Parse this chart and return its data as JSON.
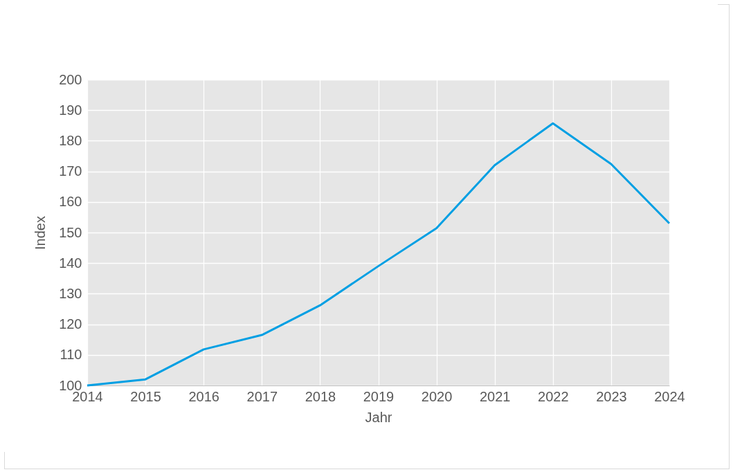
{
  "chart_data": {
    "type": "line",
    "xlabel": "Jahr",
    "ylabel": "Index",
    "x": [
      2014,
      2015,
      2016,
      2017,
      2018,
      2019,
      2020,
      2021,
      2022,
      2023,
      2024
    ],
    "series": [
      {
        "color": "#009fe3",
        "values": [
          100,
          102,
          111.8,
          116.5,
          126.2,
          139,
          151.4,
          172,
          185.7,
          172.4,
          153
        ]
      }
    ],
    "xlim": [
      2014,
      2024
    ],
    "xticks": [
      2014,
      2015,
      2016,
      2017,
      2018,
      2019,
      2020,
      2021,
      2022,
      2023,
      2024
    ],
    "ylim": [
      100,
      200
    ],
    "yticks": [
      100,
      110,
      120,
      130,
      140,
      150,
      160,
      170,
      180,
      190,
      200
    ],
    "grid": true,
    "legend": false,
    "marker": "none",
    "line_style": "solid"
  }
}
